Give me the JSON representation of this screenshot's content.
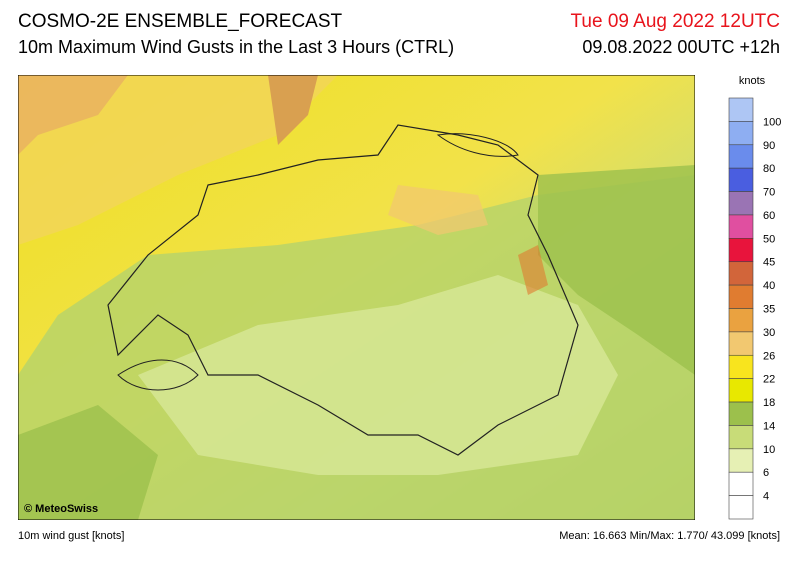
{
  "header": {
    "title": "COSMO-2E ENSEMBLE_FORECAST",
    "subtitle": "10m Maximum Wind Gusts in the Last 3 Hours (CTRL)",
    "valid_time": "Tue 09 Aug 2022 12UTC",
    "run_time": "09.08.2022 00UTC +12h"
  },
  "map": {
    "copyright": "© MeteoSwiss"
  },
  "legend": {
    "unit": "knots",
    "labels": [
      "100",
      "90",
      "80",
      "70",
      "60",
      "50",
      "45",
      "40",
      "35",
      "30",
      "26",
      "22",
      "18",
      "14",
      "10",
      "6",
      "4"
    ],
    "colors": [
      "#aec6f4",
      "#8eaef2",
      "#6a8cec",
      "#4a5ee0",
      "#9a74b4",
      "#e04fa0",
      "#e8143c",
      "#d2653a",
      "#e07c30",
      "#eaa240",
      "#f2c870",
      "#f8e41e",
      "#e8e800",
      "#9cc04c",
      "#c8dc78",
      "#e6f0b4",
      "#ffffff",
      "#ffffff"
    ]
  },
  "footer": {
    "variable": "10m wind gust [knots]",
    "stats": "Mean: 16.663 Min/Max:  1.770/ 43.099 [knots]"
  }
}
